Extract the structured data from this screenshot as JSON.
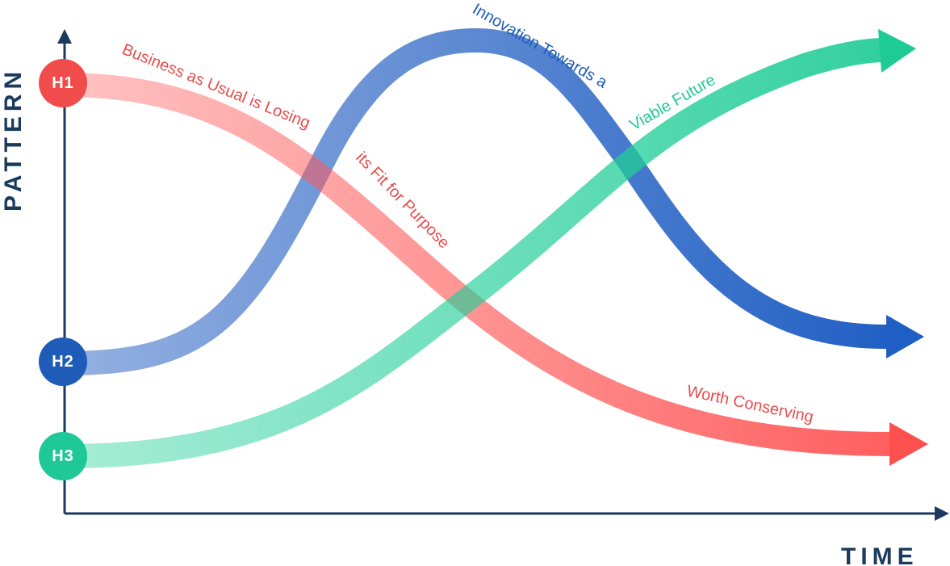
{
  "axes": {
    "y_label": "PATTERN",
    "x_label": "TIME"
  },
  "horizons": [
    {
      "label": "H1",
      "captions": [
        "Business as Usual is Losing",
        "its Fit for Purpose",
        "Worth Conserving"
      ]
    },
    {
      "label": "H2",
      "captions": [
        "Innovation Towards a"
      ]
    },
    {
      "label": "H3",
      "captions": [
        "Viable Future"
      ]
    }
  ]
}
